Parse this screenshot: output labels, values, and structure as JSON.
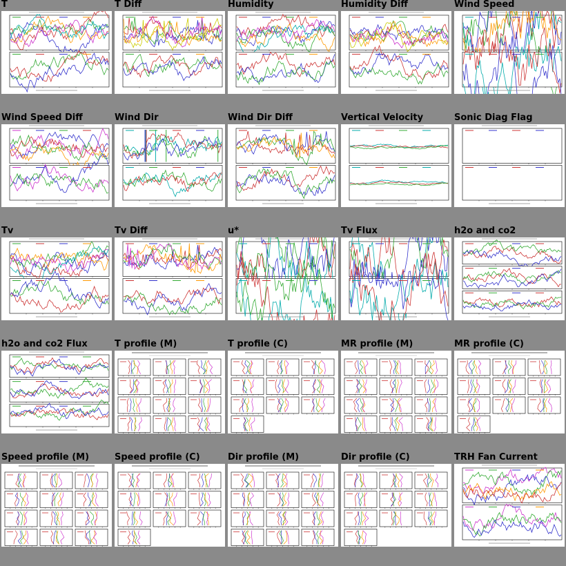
{
  "gallery": {
    "thumbnails": [
      {
        "title": "T",
        "kind": "ts2",
        "colors": [
          "#3a3",
          "#c33",
          "#33c",
          "#f90",
          "#c3c",
          "#0aa"
        ]
      },
      {
        "title": "T Diff",
        "kind": "ts2spiky",
        "colors": [
          "#3a3",
          "#c33",
          "#33c",
          "#f90",
          "#c3c",
          "#cc0"
        ]
      },
      {
        "title": "Humidity",
        "kind": "ts2multi",
        "colors": [
          "#c33",
          "#33c",
          "#3a3",
          "#f90",
          "#c3c",
          "#0aa"
        ]
      },
      {
        "title": "Humidity Diff",
        "kind": "ts2multi",
        "colors": [
          "#c33",
          "#33c",
          "#3a3",
          "#f90",
          "#c3c",
          "#cc0"
        ]
      },
      {
        "title": "Wind Speed",
        "kind": "ts2noisy",
        "colors": [
          "#0aa",
          "#c33",
          "#33c",
          "#3a3",
          "#f90"
        ]
      },
      {
        "title": "Wind Speed Diff",
        "kind": "ts2multi",
        "colors": [
          "#c3c",
          "#33c",
          "#3a3",
          "#c33",
          "#f90"
        ]
      },
      {
        "title": "Wind Dir",
        "kind": "ts2dir",
        "colors": [
          "#0aa",
          "#3a3",
          "#c33",
          "#33c"
        ]
      },
      {
        "title": "Wind Dir Diff",
        "kind": "ts2spiky",
        "colors": [
          "#c33",
          "#33c",
          "#3a3",
          "#f90"
        ]
      },
      {
        "title": "Vertical Velocity",
        "kind": "ts2flat",
        "colors": [
          "#0aa",
          "#c33",
          "#3a3"
        ]
      },
      {
        "title": "Sonic Diag Flag",
        "kind": "ts2empty",
        "colors": [
          "#c33",
          "#33c"
        ]
      },
      {
        "title": "Tv",
        "kind": "ts2",
        "colors": [
          "#3a3",
          "#c33",
          "#33c",
          "#f90",
          "#c3c",
          "#0aa"
        ]
      },
      {
        "title": "Tv Diff",
        "kind": "ts2spiky",
        "colors": [
          "#c33",
          "#33c",
          "#3a3",
          "#f90",
          "#c3c"
        ]
      },
      {
        "title": "u*",
        "kind": "ts2noisy",
        "colors": [
          "#0aa",
          "#c33",
          "#3a3",
          "#33c"
        ]
      },
      {
        "title": "Tv Flux",
        "kind": "ts2noisy",
        "colors": [
          "#0aa",
          "#33c",
          "#c33",
          "#3a3"
        ]
      },
      {
        "title": "h2o and co2",
        "kind": "ts3",
        "colors": [
          "#c33",
          "#3a3",
          "#33c"
        ]
      },
      {
        "title": "h2o and co2 Flux",
        "kind": "ts3",
        "colors": [
          "#3a3",
          "#c33",
          "#33c"
        ]
      },
      {
        "title": "T profile (M)",
        "kind": "profile",
        "colors": [
          "#c33",
          "#33c",
          "#3a3",
          "#f90",
          "#c3c"
        ]
      },
      {
        "title": "T profile (C)",
        "kind": "profile",
        "colors": [
          "#c33",
          "#33c",
          "#3a3",
          "#f90",
          "#c3c"
        ]
      },
      {
        "title": "MR profile (M)",
        "kind": "profile",
        "colors": [
          "#c33",
          "#33c",
          "#3a3",
          "#f90",
          "#c3c"
        ]
      },
      {
        "title": "MR profile (C)",
        "kind": "profile",
        "colors": [
          "#c33",
          "#33c",
          "#3a3",
          "#f90",
          "#c3c"
        ]
      },
      {
        "title": "Speed profile (M)",
        "kind": "profile",
        "colors": [
          "#c33",
          "#33c",
          "#3a3",
          "#f90",
          "#c3c"
        ]
      },
      {
        "title": "Speed profile (C)",
        "kind": "profile",
        "colors": [
          "#c33",
          "#33c",
          "#3a3",
          "#f90",
          "#c3c"
        ]
      },
      {
        "title": "Dir profile (M)",
        "kind": "profile",
        "colors": [
          "#c33",
          "#33c",
          "#3a3",
          "#f90",
          "#c3c"
        ]
      },
      {
        "title": "Dir profile (C)",
        "kind": "profile",
        "colors": [
          "#c33",
          "#33c",
          "#3a3",
          "#f90",
          "#c3c"
        ]
      },
      {
        "title": "TRH Fan Current",
        "kind": "ts2multi",
        "colors": [
          "#c3c",
          "#3a3",
          "#33c",
          "#f90",
          "#c33"
        ]
      }
    ]
  }
}
